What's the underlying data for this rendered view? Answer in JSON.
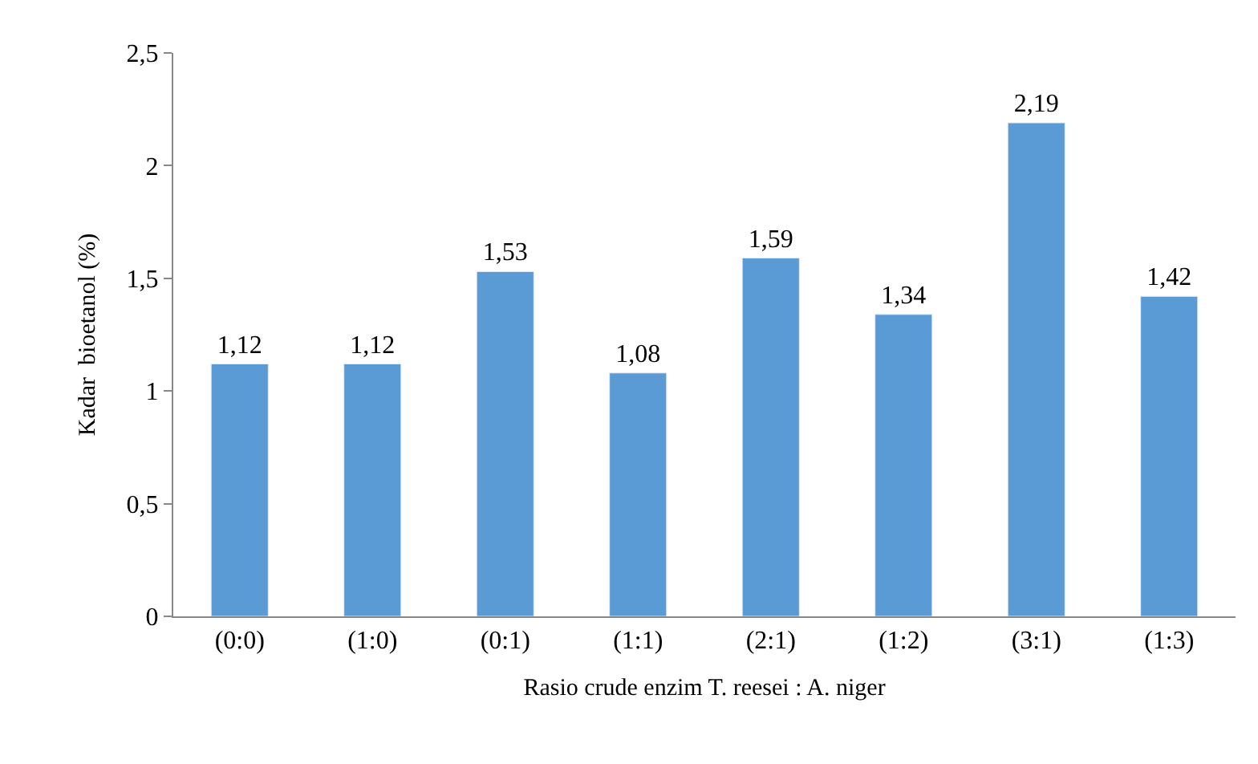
{
  "chart_data": {
    "type": "bar",
    "xlabel": "Rasio crude enzim T. reesei : A. niger",
    "ylabel": "Kadar  bioetanol (%)",
    "categories": [
      "(0:0)",
      "(1:0)",
      "(0:1)",
      "(1:1)",
      "(2:1)",
      "(1:2)",
      "(3:1)",
      "(1:3)"
    ],
    "values": [
      1.12,
      1.12,
      1.53,
      1.08,
      1.59,
      1.34,
      2.19,
      1.42
    ],
    "value_labels": [
      "1,12",
      "1,12",
      "1,53",
      "1,08",
      "1,59",
      "1,34",
      "2,19",
      "1,42"
    ],
    "color": "#5b9bd5",
    "ylim": [
      0,
      2.5
    ],
    "yticks": [
      0,
      {
        "value": 0.5,
        "label": "0,5"
      },
      1,
      {
        "value": 1.5,
        "label": "1,5"
      },
      2,
      {
        "value": 2.5,
        "label": "2,5"
      }
    ],
    "legend": false
  }
}
